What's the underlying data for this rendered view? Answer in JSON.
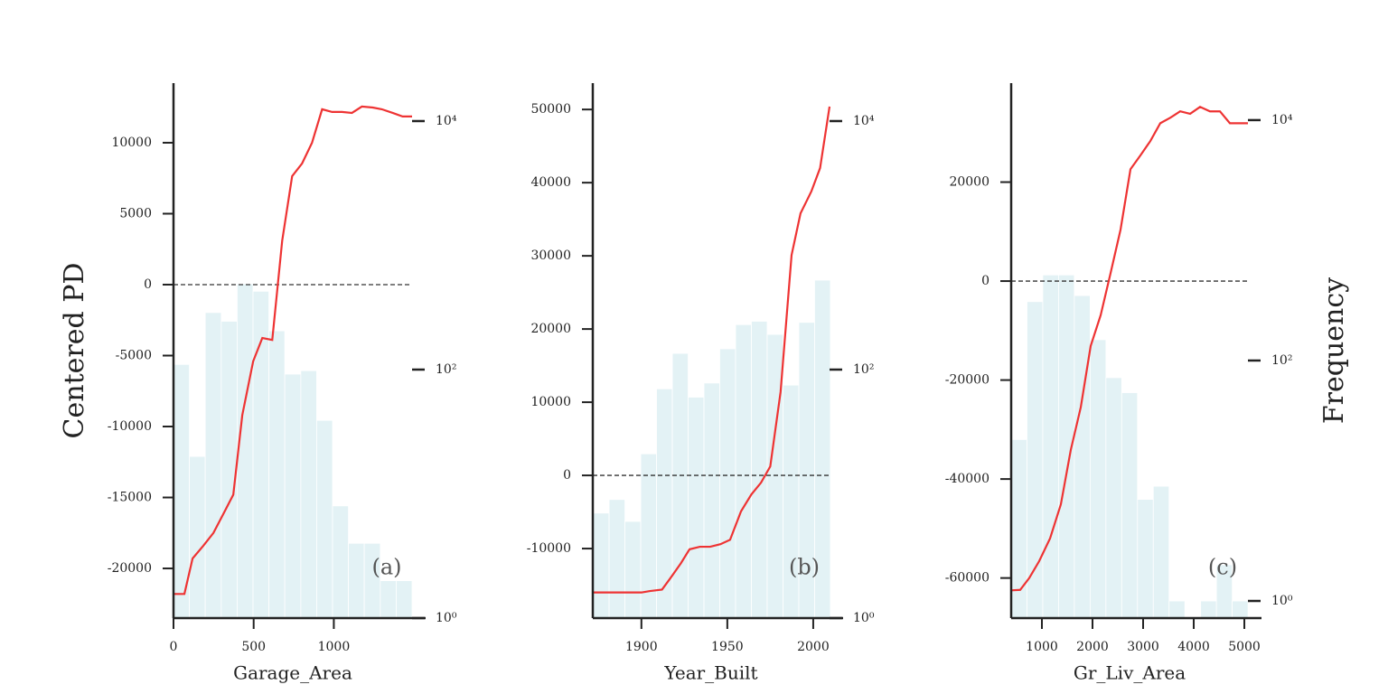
{
  "chart_data": [
    {
      "type": "line",
      "xlabel": "Garage_Area",
      "ylabel": "Centered PD",
      "annotation": "(a)",
      "color": "#ee3333",
      "x": [
        0,
        68,
        119,
        186,
        249,
        316,
        373,
        429,
        497,
        554,
        616,
        678,
        740,
        802,
        864,
        927,
        989,
        1051,
        1113,
        1175,
        1243,
        1299,
        1367,
        1429,
        1488
      ],
      "values": [
        -21800,
        -21800,
        -19300,
        -18400,
        -17500,
        -16050,
        -14800,
        -9200,
        -5400,
        -3760,
        -3900,
        3100,
        7640,
        8540,
        10000,
        12360,
        12170,
        12170,
        12100,
        12550,
        12480,
        12360,
        12100,
        11850,
        11850
      ],
      "histogram": {
        "axis": "y2",
        "color": "#e3f2f5",
        "bins": [
          0,
          99,
          198,
          298,
          397,
          496,
          595,
          694,
          794,
          893,
          992,
          1091,
          1190,
          1290,
          1389,
          1488
        ],
        "counts": [
          110,
          20,
          288,
          245,
          490,
          427,
          205,
          92,
          98,
          39,
          8,
          4,
          4,
          2,
          2
        ]
      },
      "hline": 0,
      "xlim": [
        0,
        1488
      ],
      "xticks": [
        0,
        500,
        1000
      ],
      "ylim": [
        -23500,
        14200
      ],
      "yticks": [
        -20000,
        -15000,
        -10000,
        -5000,
        0,
        5000,
        10000
      ],
      "y2lim": [
        1,
        20200
      ],
      "y2log": true,
      "y2ticks": [
        {
          "value": 1,
          "label": "10⁰"
        },
        {
          "value": 100,
          "label": "10²"
        },
        {
          "value": 10000,
          "label": "10⁴"
        }
      ]
    },
    {
      "type": "line",
      "xlabel": "Year_Built",
      "annotation": "(b)",
      "color": "#ee3333",
      "x": [
        1872,
        1883.5,
        1894,
        1900,
        1905,
        1912,
        1917,
        1923,
        1928,
        1934,
        1940,
        1946,
        1951.6,
        1958,
        1964,
        1969.6,
        1975,
        1981,
        1987.4,
        1992.6,
        1998.9,
        2004,
        2009.5
      ],
      "values": [
        -16000,
        -16000,
        -16000,
        -16000,
        -15800,
        -15600,
        -14000,
        -12000,
        -10100,
        -9750,
        -9750,
        -9400,
        -8800,
        -4900,
        -2600,
        -1000,
        1230,
        11400,
        30100,
        35800,
        38800,
        42000,
        50400
      ],
      "histogram": {
        "axis": "y2",
        "color": "#e3f2f5",
        "bins": [
          1872,
          1881.2,
          1890.4,
          1899.6,
          1908.8,
          1918,
          1927.2,
          1936.4,
          1945.6,
          1954.8,
          1964,
          1973.2,
          1982.4,
          1991.6,
          2000.8,
          2010
        ],
        "counts": [
          7,
          9,
          6,
          21,
          70,
          135,
          60,
          78,
          147,
          230,
          245,
          192,
          75,
          240,
          525
        ]
      },
      "hline": 0,
      "xlim": [
        1871.7,
        2009.5
      ],
      "xticks": [
        1900,
        1950,
        2000
      ],
      "ylim": [
        -19500,
        53600
      ],
      "yticks": [
        -10000,
        0,
        10000,
        20000,
        30000,
        40000,
        50000
      ],
      "y2lim": [
        1,
        20200
      ],
      "y2log": true,
      "y2ticks": [
        {
          "value": 1,
          "label": "10⁰"
        },
        {
          "value": 100,
          "label": "10²"
        },
        {
          "value": 10000,
          "label": "10⁴"
        }
      ]
    },
    {
      "type": "line",
      "xlabel": "Gr_Liv_Area",
      "y2label": "Frequency",
      "annotation": "(c)",
      "color": "#ee3333",
      "x": [
        393,
        571,
        750,
        946,
        1161,
        1375,
        1571,
        1768,
        1964,
        2161,
        2357,
        2554,
        2750,
        2946,
        3143,
        3339,
        3536,
        3732,
        3929,
        4125,
        4321,
        4518,
        4714,
        4911,
        5071
      ],
      "values": [
        -62500,
        -62400,
        -60000,
        -56600,
        -52000,
        -45100,
        -34100,
        -25500,
        -13100,
        -6900,
        1600,
        10400,
        22600,
        25400,
        28300,
        31900,
        33000,
        34300,
        33800,
        35200,
        34300,
        34300,
        31900,
        31900,
        31900
      ],
      "histogram": {
        "axis": "y2",
        "color": "#e3f2f5",
        "bins": [
          393,
          705,
          1017,
          1329,
          1641,
          1953,
          2265,
          2577,
          2889,
          3201,
          3513,
          3825,
          4137,
          4449,
          4761,
          5073
        ],
        "counts": [
          22,
          309,
          515,
          515,
          347,
          149,
          72,
          54,
          7,
          9,
          1,
          0,
          1,
          2,
          1
        ]
      },
      "hline": 0,
      "xlim": [
        393,
        5071
      ],
      "xticks": [
        1000,
        2000,
        3000,
        4000,
        5000
      ],
      "ylim": [
        -68100,
        40000
      ],
      "yticks": [
        -60000,
        -40000,
        -20000,
        0,
        20000
      ],
      "y2lim": [
        0.72,
        20300
      ],
      "y2log": true,
      "y2ticks": [
        {
          "value": 1,
          "label": "10⁰"
        },
        {
          "value": 100,
          "label": "10²"
        },
        {
          "value": 10000,
          "label": "10⁴"
        }
      ]
    }
  ]
}
